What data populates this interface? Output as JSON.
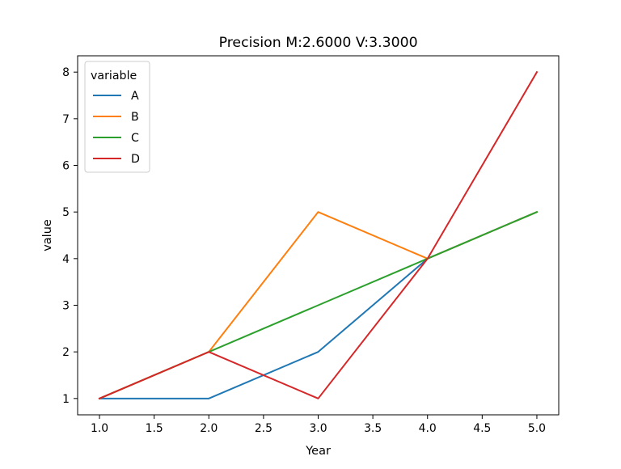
{
  "chart_data": {
    "type": "line",
    "title": "Precision M:2.6000 V:3.3000",
    "xlabel": "Year",
    "ylabel": "value",
    "x": [
      1.0,
      2.0,
      3.0,
      4.0,
      5.0
    ],
    "xlim": [
      0.8,
      5.2
    ],
    "ylim": [
      0.65,
      8.35
    ],
    "xticks": [
      1.0,
      1.5,
      2.0,
      2.5,
      3.0,
      3.5,
      4.0,
      4.5,
      5.0
    ],
    "xtick_labels": [
      "1.0",
      "1.5",
      "2.0",
      "2.5",
      "3.0",
      "3.5",
      "4.0",
      "4.5",
      "5.0"
    ],
    "yticks": [
      1,
      2,
      3,
      4,
      5,
      6,
      7,
      8
    ],
    "ytick_labels": [
      "1",
      "2",
      "3",
      "4",
      "5",
      "6",
      "7",
      "8"
    ],
    "grid": false,
    "legend": {
      "title": "variable",
      "placement": "top-left"
    },
    "series": [
      {
        "name": "A",
        "color": "#1f77b4",
        "values": [
          1,
          1,
          2,
          4,
          5
        ]
      },
      {
        "name": "B",
        "color": "#ff7f0e",
        "values": [
          1,
          2,
          5,
          4,
          5
        ]
      },
      {
        "name": "C",
        "color": "#2ca02c",
        "values": [
          1,
          2,
          3,
          4,
          5
        ]
      },
      {
        "name": "D",
        "color": "#d62728",
        "values": [
          1,
          2,
          1,
          4,
          8
        ]
      }
    ]
  }
}
